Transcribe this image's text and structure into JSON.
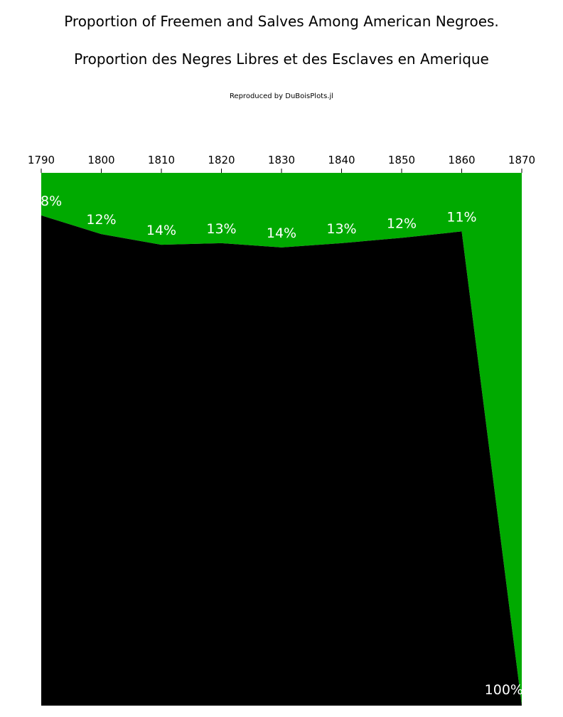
{
  "title": "Proportion of Freemen and Salves Among American Negroes.",
  "subtitle": "Proportion des Negres Libres et des Esclaves en Amerique",
  "credit": "Reproduced by DuBoisPlots.jl",
  "colors": {
    "free": "#00aa00",
    "slave": "#000000",
    "label": "#ffffff",
    "background": "#ffffff"
  },
  "chart_data": {
    "type": "area",
    "orientation": "x-axis on top, values stacked downward from top",
    "x": [
      1790,
      1800,
      1810,
      1820,
      1830,
      1840,
      1850,
      1860,
      1870
    ],
    "xlim": [
      1790,
      1870
    ],
    "tick_labels": [
      "1790",
      "1800",
      "1810",
      "1820",
      "1830",
      "1840",
      "1850",
      "1860",
      "1870"
    ],
    "series": [
      {
        "values": [
          8,
          11.5,
          13.5,
          13.2,
          14,
          13.2,
          12.2,
          11,
          100
        ],
        "color": "#00aa00"
      },
      {
        "values": [
          92,
          88.5,
          86.5,
          86.8,
          86,
          86.8,
          87.8,
          89,
          0
        ],
        "color": "#000000"
      }
    ],
    "labels": [
      "8%",
      "12%",
      "14%",
      "13%",
      "14%",
      "13%",
      "12%",
      "11%",
      "100%"
    ],
    "ylim": [
      0,
      100
    ],
    "grid": false,
    "legend": "none"
  }
}
